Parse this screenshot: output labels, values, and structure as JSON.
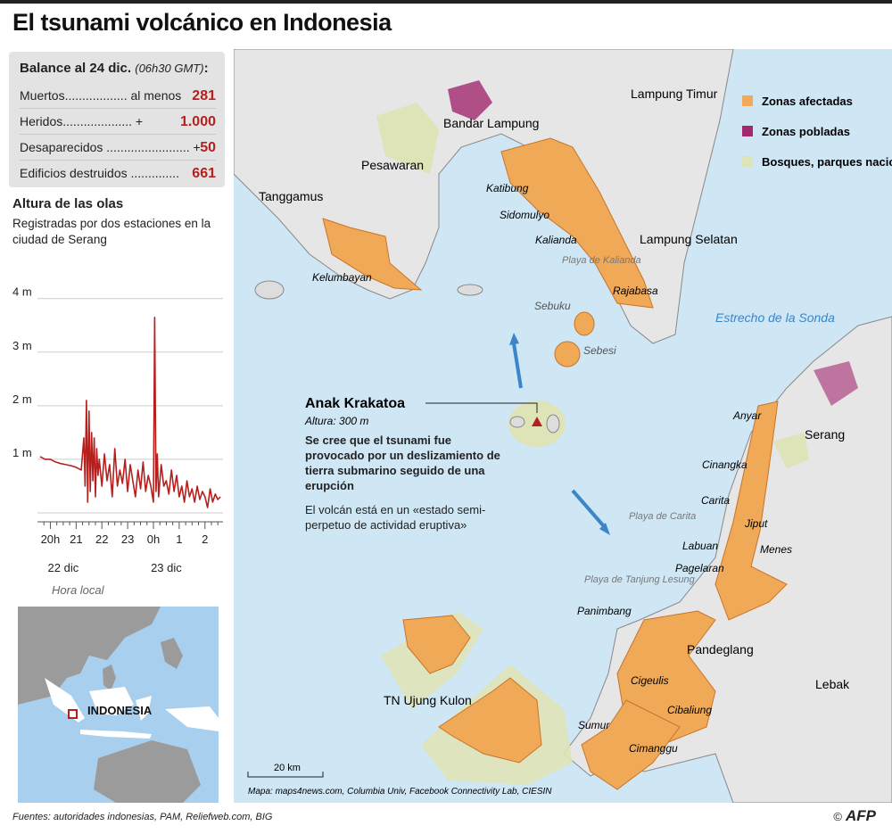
{
  "title": "El tsunami volcánico en Indonesia",
  "balance": {
    "heading": "Balance al 24 dic.",
    "time": "(06h30 GMT)",
    "colon": ":",
    "rows": [
      {
        "label": "Muertos.................. al menos",
        "value": "281"
      },
      {
        "label": "Heridos.................... +",
        "value": "1.000"
      },
      {
        "label": "Desaparecidos ........................ +",
        "value": "50"
      },
      {
        "label": "Edificios destruidos ..............",
        "value": "661"
      }
    ]
  },
  "waves": {
    "heading": "Altura de las olas",
    "subtitle": "Registradas por dos estaciones en la ciudad de Serang"
  },
  "chart_data": {
    "type": "line",
    "title": "Altura de las olas",
    "subtitle": "Registradas por dos estaciones en la ciudad de Serang",
    "xlabel": "Hora local",
    "ylim": [
      0,
      4
    ],
    "y_ticks": [
      "4 m",
      "3 m",
      "2 m",
      "1 m"
    ],
    "y_tick_values": [
      4,
      3,
      2,
      1
    ],
    "x_ticks": [
      "20h",
      "21",
      "22",
      "23",
      "0h",
      "1",
      "2"
    ],
    "x_tick_values": [
      20,
      21,
      22,
      23,
      24,
      25,
      26
    ],
    "date_labels": [
      {
        "label": "22 dic",
        "at": 20.5
      },
      {
        "label": "23 dic",
        "at": 24.5
      }
    ],
    "xlim": [
      19.5,
      26.7
    ],
    "grid": true,
    "series": [
      {
        "color": "#b5201e",
        "x": [
          19.6,
          19.8,
          20.0,
          20.2,
          20.4,
          20.6,
          20.8,
          21.0,
          21.2,
          21.3,
          21.35,
          21.4,
          21.45,
          21.5,
          21.55,
          21.6,
          21.65,
          21.7,
          21.75,
          21.8,
          21.85,
          21.9,
          22.0,
          22.1,
          22.2,
          22.3,
          22.4,
          22.5,
          22.6,
          22.7,
          22.8,
          22.9,
          23.0,
          23.1,
          23.2,
          23.3,
          23.4,
          23.5,
          23.6,
          23.7,
          23.8,
          23.9,
          24.0,
          24.05,
          24.1,
          24.15,
          24.2,
          24.3,
          24.4,
          24.5,
          24.6,
          24.7,
          24.8,
          24.9,
          25.0,
          25.1,
          25.2,
          25.3,
          25.4,
          25.5,
          25.6,
          25.7,
          25.8,
          25.9,
          26.0,
          26.1,
          26.2,
          26.3,
          26.4,
          26.5,
          26.6
        ],
        "y": [
          1.05,
          1.0,
          1.0,
          0.95,
          0.92,
          0.9,
          0.88,
          0.85,
          0.8,
          1.4,
          0.5,
          2.1,
          0.2,
          1.9,
          0.4,
          1.5,
          0.6,
          1.4,
          0.3,
          1.2,
          0.7,
          1.0,
          0.5,
          1.1,
          0.6,
          0.9,
          0.3,
          1.2,
          0.5,
          0.8,
          0.55,
          1.0,
          0.4,
          0.9,
          0.6,
          0.3,
          0.8,
          0.45,
          0.95,
          0.4,
          0.7,
          0.5,
          0.2,
          3.65,
          0.4,
          1.1,
          0.3,
          0.9,
          0.5,
          0.6,
          0.35,
          0.8,
          0.4,
          0.7,
          0.3,
          0.5,
          0.2,
          0.6,
          0.3,
          0.45,
          0.2,
          0.5,
          0.25,
          0.4,
          0.3,
          0.1,
          0.45,
          0.2,
          0.35,
          0.25,
          0.3
        ]
      }
    ]
  },
  "inset": {
    "label": "INDONESIA"
  },
  "legend": [
    {
      "label": "Zonas afectadas",
      "color": "#f0a957"
    },
    {
      "label": "Zonas pobladas",
      "color": "#a3286f"
    },
    {
      "label": "Bosques, parques nacionales",
      "color": "#dfe3b8"
    }
  ],
  "places": {
    "lampung_timur": "Lampung Timur",
    "bandar_lampung": "Bandar Lampung",
    "pesawaran": "Pesawaran",
    "tanggamus": "Tanggamus",
    "katibung": "Katibung",
    "sidomulyo": "Sidomulyo",
    "kalianda": "Kalianda",
    "lampung_selatan": "Lampung Selatan",
    "playa_kalianda": "Playa de Kalianda",
    "rajabasa": "Rajabasa",
    "kelumbayan": "Kelumbayan",
    "sebuku": "Sebuku",
    "sebesi": "Sebesi",
    "estrecho": "Estrecho de la Sonda",
    "anyar": "Anyar",
    "serang": "Serang",
    "cinangka": "Cinangka",
    "carita": "Carita",
    "playa_carita": "Playa de Carita",
    "jiput": "Jiput",
    "labuan": "Labuan",
    "menes": "Menes",
    "pagelaran": "Pagelaran",
    "playa_tanjung": "Playa de Tanjung Lesung",
    "panimbang": "Panimbang",
    "pandeglang": "Pandeglang",
    "cigeulis": "Cigeulis",
    "lebak": "Lebak",
    "ujung_kulon": "TN Ujung Kulon",
    "cibaliung": "Cibaliung",
    "sumur": "Sumur",
    "cimanggu": "Cimanggu"
  },
  "krakatoa": {
    "name": "Anak Krakatoa",
    "altitude": "Altura: 300 m",
    "desc": "Se cree que el tsunami fue provocado por un deslizamiento de tierra submarino seguido de una erupción",
    "desc2": "El volcán está en un «estado semi-perpetuo de actividad eruptiva»"
  },
  "scale": "20 km",
  "map_credit": "Mapa: maps4news.com, Columbia Univ, Facebook Connectivity Lab, CIESIN",
  "sources": "Fuentes: autoridades indonesias, PAM, Reliefweb.com, BIG",
  "copyright": "©",
  "agency": "AFP"
}
